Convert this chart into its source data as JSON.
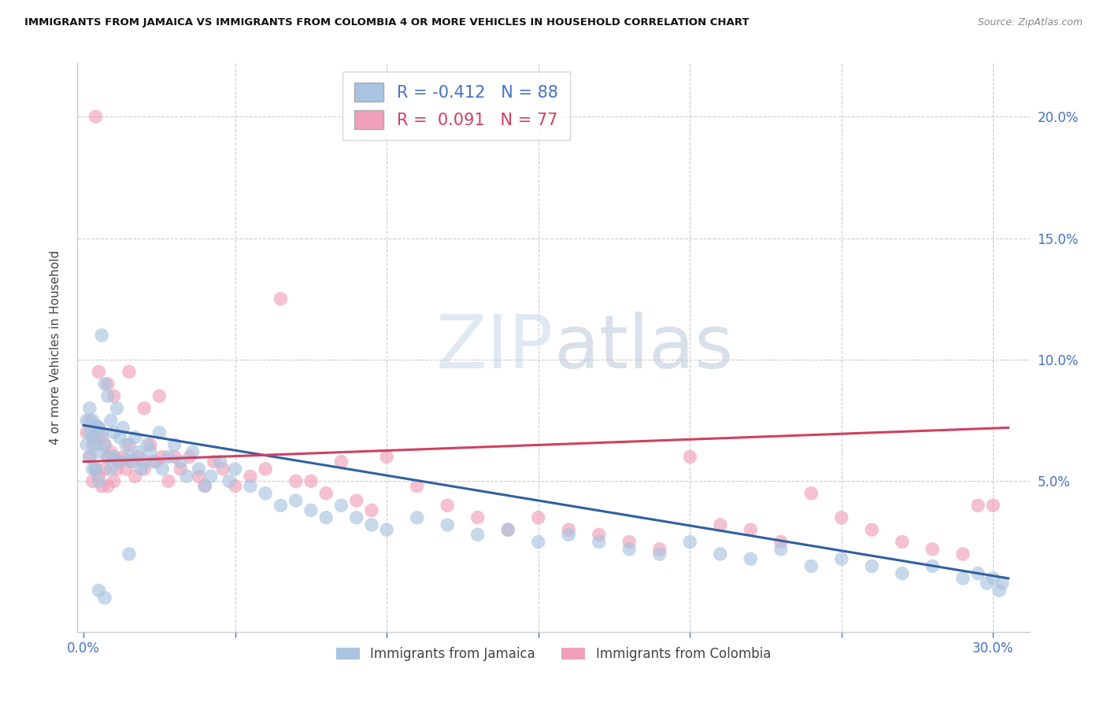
{
  "title": "IMMIGRANTS FROM JAMAICA VS IMMIGRANTS FROM COLOMBIA 4 OR MORE VEHICLES IN HOUSEHOLD CORRELATION CHART",
  "source": "Source: ZipAtlas.com",
  "ylabel": "4 or more Vehicles in Household",
  "color_jamaica": "#a8c4e0",
  "color_colombia": "#f0a0b8",
  "line_color_jamaica": "#3060a0",
  "line_color_colombia": "#d04060",
  "legend_r_jamaica": "R = -0.412",
  "legend_n_jamaica": "N = 88",
  "legend_r_colombia": "R =  0.091",
  "legend_n_colombia": "N = 77",
  "xlim": [
    -0.002,
    0.312
  ],
  "ylim": [
    -0.012,
    0.222
  ],
  "jamaica_line_x": [
    0.0,
    0.305
  ],
  "jamaica_line_y": [
    0.073,
    0.01
  ],
  "colombia_line_x": [
    0.0,
    0.305
  ],
  "colombia_line_y": [
    0.058,
    0.072
  ],
  "jamaica_x": [
    0.001,
    0.001,
    0.002,
    0.002,
    0.002,
    0.003,
    0.003,
    0.003,
    0.004,
    0.004,
    0.004,
    0.005,
    0.005,
    0.005,
    0.006,
    0.006,
    0.007,
    0.007,
    0.008,
    0.008,
    0.009,
    0.009,
    0.01,
    0.01,
    0.011,
    0.012,
    0.012,
    0.013,
    0.014,
    0.015,
    0.016,
    0.017,
    0.018,
    0.019,
    0.02,
    0.021,
    0.022,
    0.023,
    0.025,
    0.026,
    0.028,
    0.03,
    0.032,
    0.034,
    0.036,
    0.038,
    0.04,
    0.042,
    0.045,
    0.048,
    0.05,
    0.055,
    0.06,
    0.065,
    0.07,
    0.075,
    0.08,
    0.085,
    0.09,
    0.095,
    0.1,
    0.11,
    0.12,
    0.13,
    0.14,
    0.15,
    0.16,
    0.17,
    0.18,
    0.19,
    0.2,
    0.21,
    0.22,
    0.23,
    0.24,
    0.25,
    0.26,
    0.27,
    0.28,
    0.29,
    0.295,
    0.298,
    0.3,
    0.302,
    0.303,
    0.005,
    0.007,
    0.015
  ],
  "jamaica_y": [
    0.075,
    0.065,
    0.08,
    0.07,
    0.06,
    0.075,
    0.068,
    0.055,
    0.073,
    0.065,
    0.055,
    0.072,
    0.062,
    0.05,
    0.11,
    0.07,
    0.09,
    0.065,
    0.085,
    0.06,
    0.075,
    0.055,
    0.07,
    0.06,
    0.08,
    0.068,
    0.058,
    0.072,
    0.065,
    0.06,
    0.058,
    0.068,
    0.062,
    0.055,
    0.058,
    0.065,
    0.062,
    0.058,
    0.07,
    0.055,
    0.06,
    0.065,
    0.058,
    0.052,
    0.062,
    0.055,
    0.048,
    0.052,
    0.058,
    0.05,
    0.055,
    0.048,
    0.045,
    0.04,
    0.042,
    0.038,
    0.035,
    0.04,
    0.035,
    0.032,
    0.03,
    0.035,
    0.032,
    0.028,
    0.03,
    0.025,
    0.028,
    0.025,
    0.022,
    0.02,
    0.025,
    0.02,
    0.018,
    0.022,
    0.015,
    0.018,
    0.015,
    0.012,
    0.015,
    0.01,
    0.012,
    0.008,
    0.01,
    0.005,
    0.008,
    0.005,
    0.002,
    0.02
  ],
  "colombia_x": [
    0.001,
    0.002,
    0.002,
    0.003,
    0.003,
    0.004,
    0.004,
    0.005,
    0.005,
    0.006,
    0.006,
    0.007,
    0.007,
    0.008,
    0.008,
    0.009,
    0.01,
    0.01,
    0.011,
    0.012,
    0.013,
    0.014,
    0.015,
    0.016,
    0.017,
    0.018,
    0.02,
    0.022,
    0.024,
    0.026,
    0.028,
    0.03,
    0.032,
    0.035,
    0.038,
    0.04,
    0.043,
    0.046,
    0.05,
    0.055,
    0.06,
    0.065,
    0.07,
    0.075,
    0.08,
    0.085,
    0.09,
    0.095,
    0.1,
    0.11,
    0.12,
    0.13,
    0.14,
    0.15,
    0.16,
    0.17,
    0.18,
    0.19,
    0.2,
    0.21,
    0.22,
    0.23,
    0.24,
    0.25,
    0.26,
    0.27,
    0.28,
    0.29,
    0.295,
    0.3,
    0.004,
    0.005,
    0.008,
    0.01,
    0.015,
    0.02,
    0.025
  ],
  "colombia_y": [
    0.07,
    0.075,
    0.06,
    0.065,
    0.05,
    0.068,
    0.055,
    0.072,
    0.052,
    0.068,
    0.048,
    0.065,
    0.055,
    0.06,
    0.048,
    0.062,
    0.06,
    0.05,
    0.055,
    0.058,
    0.06,
    0.055,
    0.065,
    0.058,
    0.052,
    0.06,
    0.055,
    0.065,
    0.058,
    0.06,
    0.05,
    0.06,
    0.055,
    0.06,
    0.052,
    0.048,
    0.058,
    0.055,
    0.048,
    0.052,
    0.055,
    0.125,
    0.05,
    0.05,
    0.045,
    0.058,
    0.042,
    0.038,
    0.06,
    0.048,
    0.04,
    0.035,
    0.03,
    0.035,
    0.03,
    0.028,
    0.025,
    0.022,
    0.06,
    0.032,
    0.03,
    0.025,
    0.045,
    0.035,
    0.03,
    0.025,
    0.022,
    0.02,
    0.04,
    0.04,
    0.2,
    0.095,
    0.09,
    0.085,
    0.095,
    0.08,
    0.085
  ]
}
